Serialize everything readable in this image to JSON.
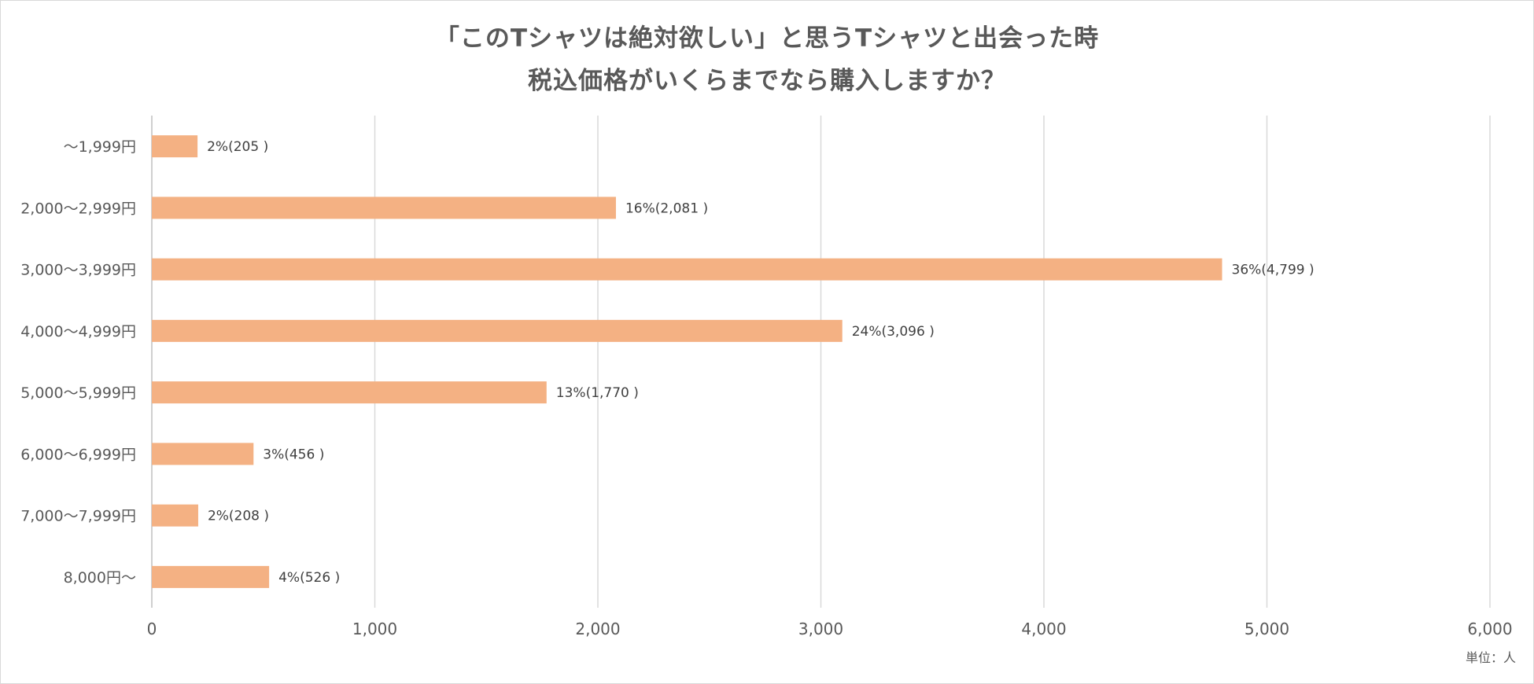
{
  "chart_data": {
    "type": "bar",
    "orientation": "horizontal",
    "title_line1": "「このTシャツは絶対欲しい」と思うTシャツと出会った時",
    "title_line2": "税込価格がいくらまでなら購入しますか？",
    "categories": [
      "〜1,999円",
      "2,000〜2,999円",
      "3,000〜3,999円",
      "4,000〜4,999円",
      "5,000〜5,999円",
      "6,000〜6,999円",
      "7,000〜7,999円",
      "8,000円〜"
    ],
    "values": [
      205,
      2081,
      4799,
      3096,
      1770,
      456,
      208,
      526
    ],
    "data_labels": [
      "2%(205 )",
      "16%(2,081 )",
      "36%(4,799 )",
      "24%(3,096 )",
      "13%(1,770 )",
      "3%(456 )",
      "2%(208 )",
      "4%(526 )"
    ],
    "xlim": [
      0,
      6000
    ],
    "x_ticks": [
      0,
      1000,
      2000,
      3000,
      4000,
      5000,
      6000
    ],
    "x_tick_labels": [
      "0",
      "1,000",
      "2,000",
      "3,000",
      "4,000",
      "5,000",
      "6,000"
    ],
    "unit_label": "単位：人",
    "grid": true,
    "bar_color": "#f4b183",
    "grid_color": "#d9d9d9",
    "text_color": "#595959"
  }
}
